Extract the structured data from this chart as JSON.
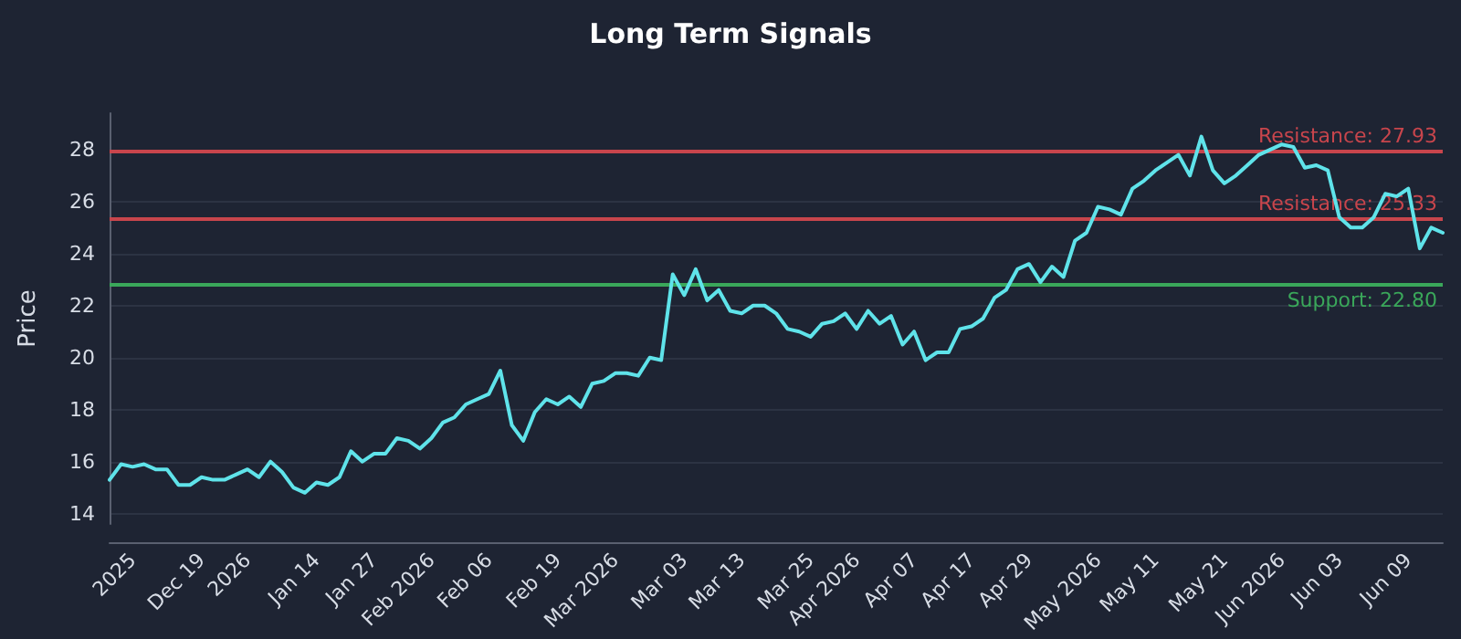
{
  "chart_data": {
    "type": "line",
    "title": "Long Term Signals",
    "ylabel": "Price",
    "categories": [
      null,
      null,
      "2025",
      null,
      null,
      null,
      null,
      null,
      "Dec 19",
      null,
      null,
      null,
      "2026",
      null,
      null,
      null,
      null,
      null,
      "Jan 14",
      null,
      null,
      null,
      null,
      "Jan 27",
      null,
      null,
      null,
      null,
      "Feb 2026",
      null,
      null,
      null,
      null,
      "Feb 06",
      null,
      null,
      null,
      null,
      null,
      "Feb 19",
      null,
      null,
      null,
      null,
      "Mar 2026",
      null,
      null,
      null,
      null,
      null,
      "Mar 03",
      null,
      null,
      null,
      null,
      "Mar 13",
      null,
      null,
      null,
      null,
      null,
      "Mar 25",
      null,
      null,
      null,
      "Apr 2026",
      null,
      null,
      null,
      null,
      "Apr 07",
      null,
      null,
      null,
      null,
      "Apr 17",
      null,
      null,
      null,
      null,
      "Apr 29",
      null,
      null,
      null,
      null,
      null,
      "May 2026",
      null,
      null,
      null,
      null,
      "May 11",
      null,
      null,
      null,
      null,
      null,
      "May 21",
      null,
      null,
      null,
      null,
      "Jun 2026",
      null,
      null,
      null,
      null,
      "Jun 03",
      null,
      null,
      null,
      null,
      null,
      "Jun 09",
      null,
      null,
      null
    ],
    "series": [
      {
        "color": "#5fe3ea",
        "values": [
          15.3,
          15.9,
          15.8,
          15.9,
          15.7,
          15.7,
          15.1,
          15.1,
          15.4,
          15.3,
          15.3,
          15.5,
          15.7,
          15.4,
          16.0,
          15.6,
          15.0,
          14.8,
          15.2,
          15.1,
          15.4,
          16.4,
          16.0,
          16.3,
          16.3,
          16.9,
          16.8,
          16.5,
          16.9,
          17.5,
          17.7,
          18.2,
          18.4,
          18.6,
          19.5,
          17.4,
          16.8,
          17.9,
          18.4,
          18.2,
          18.5,
          18.1,
          19.0,
          19.1,
          19.4,
          19.4,
          19.3,
          20.0,
          19.9,
          23.2,
          22.4,
          23.4,
          22.2,
          22.6,
          21.8,
          21.7,
          22.0,
          22.0,
          21.7,
          21.1,
          21.0,
          20.8,
          21.3,
          21.4,
          21.7,
          21.1,
          21.8,
          21.3,
          21.6,
          20.5,
          21.0,
          19.9,
          20.2,
          20.2,
          21.1,
          21.2,
          21.5,
          22.3,
          22.6,
          23.4,
          23.6,
          22.9,
          23.5,
          23.1,
          24.5,
          24.8,
          25.8,
          25.7,
          25.5,
          26.5,
          26.8,
          27.2,
          27.5,
          27.8,
          27.0,
          28.5,
          27.2,
          26.7,
          27.0,
          27.4,
          27.8,
          28.0,
          28.2,
          28.1,
          27.3,
          27.4,
          27.2,
          25.4,
          25.0,
          25.0,
          25.4,
          26.3,
          26.2,
          26.5,
          24.2,
          25.0,
          24.8
        ]
      }
    ],
    "ylim": [
      13.6,
      29.4
    ],
    "yticks": [
      14,
      16,
      18,
      20,
      22,
      24,
      26,
      28
    ],
    "grid": "y",
    "marker": "none",
    "line_style": "solid",
    "ref_lines": [
      {
        "axis": "y",
        "value": 27.93,
        "label": "Resistance: 27.93",
        "color": "#c8454c"
      },
      {
        "axis": "y",
        "value": 25.33,
        "label": "Resistance: 25.33",
        "color": "#c8454c"
      },
      {
        "axis": "y",
        "value": 22.8,
        "label": "Support: 22.80",
        "color": "#3aa75a"
      }
    ]
  }
}
